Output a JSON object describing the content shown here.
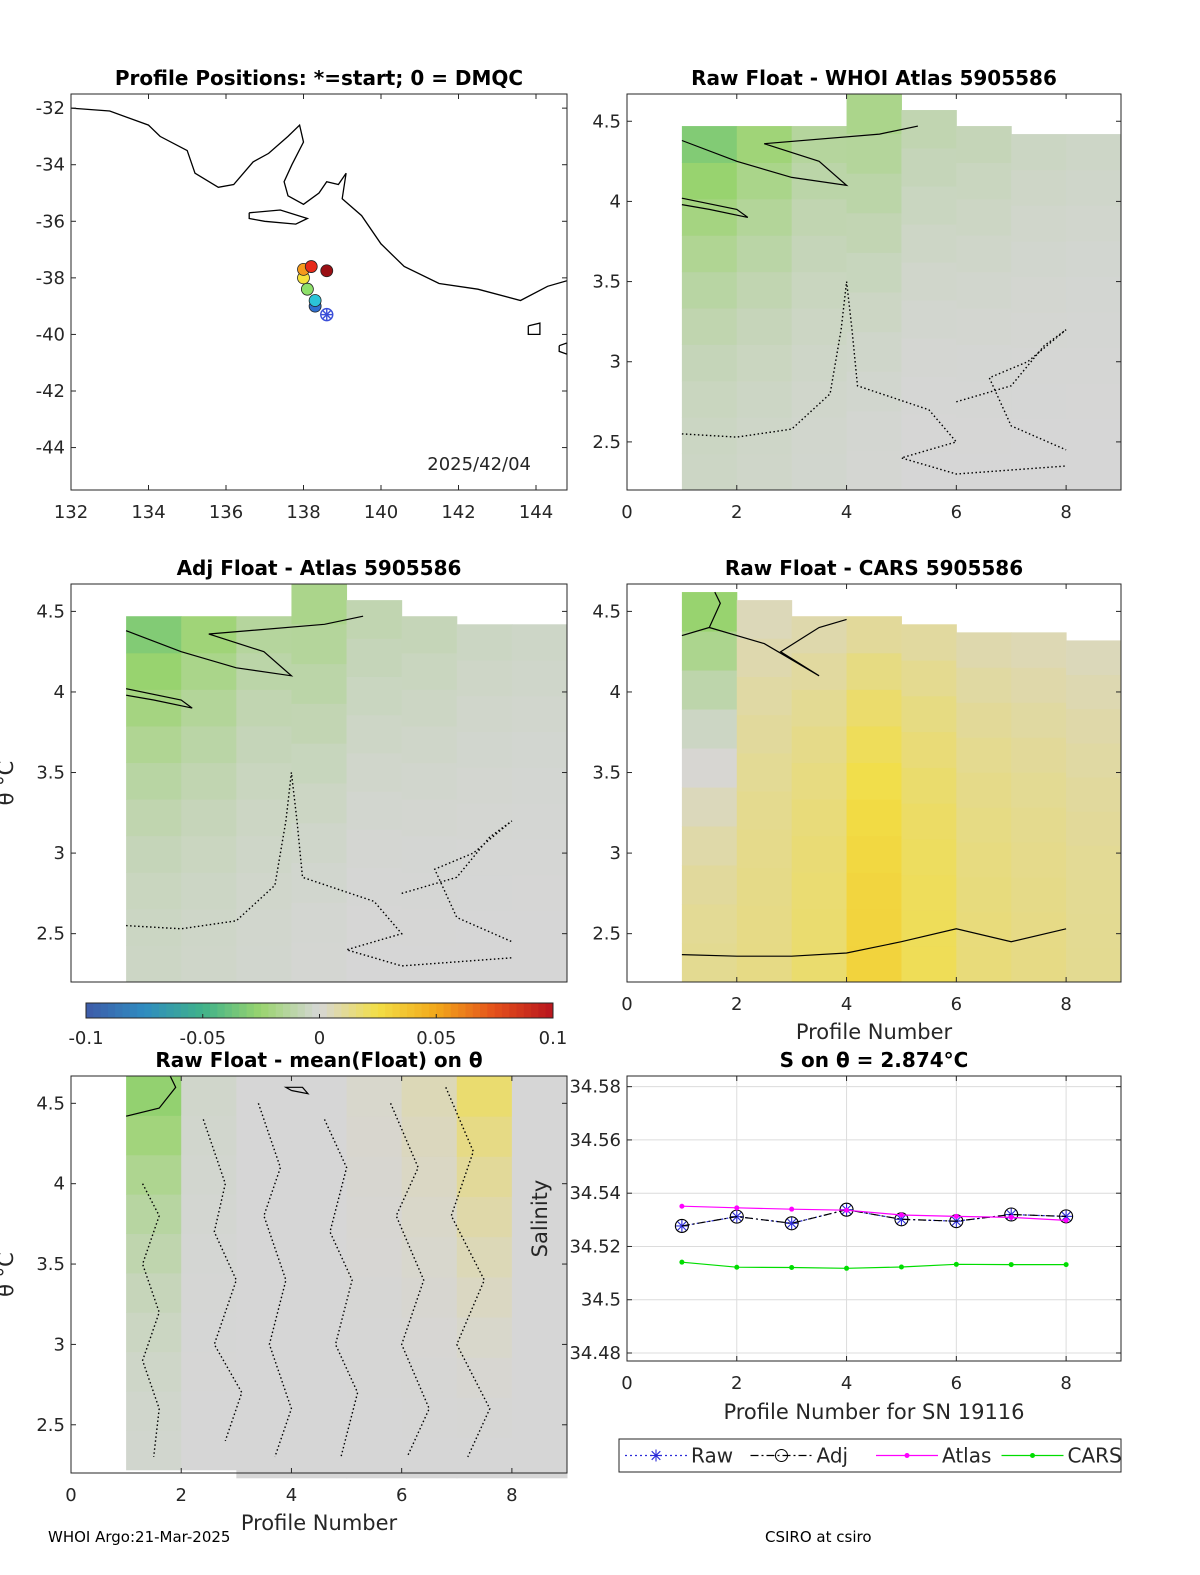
{
  "footer": {
    "left": "WHOI Argo:21-Mar-2025",
    "right": "CSIRO at csiro"
  },
  "colorbar": {
    "ticks": [
      -0.1,
      -0.05,
      0,
      0.05,
      0.1
    ],
    "tick_labels": [
      "-0.1",
      "-0.05",
      "0",
      "0.05",
      "0.1"
    ],
    "colormap": [
      "#3e5ba8",
      "#2f8cc0",
      "#3fb28a",
      "#9ad46e",
      "#d6d6d6",
      "#f2de46",
      "#f2a81a",
      "#e4501a",
      "#b8141e"
    ],
    "range": [
      -0.1,
      0.1
    ]
  },
  "chart_data": [
    {
      "type": "scatter",
      "id": "map",
      "title": "Profile Positions: *=start; 0 = DMQC",
      "annotation": "2025/42/04",
      "xlim": [
        132,
        144.8
      ],
      "ylim": [
        -45.5,
        -31.5
      ],
      "xticks": [
        132,
        134,
        136,
        138,
        140,
        142,
        144
      ],
      "yticks": [
        -32,
        -34,
        -36,
        -38,
        -40,
        -42,
        -44
      ],
      "start_marker": {
        "lon": 138.6,
        "lat": -39.3,
        "color": "#3b4fd8"
      },
      "points": [
        {
          "lon": 138.3,
          "lat": -39.0,
          "color": "#2f6fd0"
        },
        {
          "lon": 138.3,
          "lat": -38.8,
          "color": "#2cc4d8"
        },
        {
          "lon": 138.1,
          "lat": -38.4,
          "color": "#8ee06a"
        },
        {
          "lon": 138.0,
          "lat": -38.0,
          "color": "#f5e23c"
        },
        {
          "lon": 138.0,
          "lat": -37.7,
          "color": "#f59a1c"
        },
        {
          "lon": 138.2,
          "lat": -37.6,
          "color": "#e62a1a"
        },
        {
          "lon": 138.6,
          "lat": -37.75,
          "color": "#9a0f14"
        }
      ],
      "coastline": [
        [
          [
            132.0,
            -32.0
          ],
          [
            133.0,
            -32.1
          ],
          [
            134.0,
            -32.6
          ],
          [
            134.3,
            -33.0
          ],
          [
            135.0,
            -33.5
          ],
          [
            135.2,
            -34.3
          ],
          [
            135.8,
            -34.8
          ],
          [
            136.2,
            -34.7
          ],
          [
            136.7,
            -33.9
          ],
          [
            137.1,
            -33.6
          ],
          [
            137.6,
            -33.0
          ],
          [
            137.9,
            -32.6
          ],
          [
            138.0,
            -33.2
          ],
          [
            137.7,
            -34.0
          ],
          [
            137.5,
            -34.6
          ],
          [
            137.6,
            -35.1
          ],
          [
            138.0,
            -35.4
          ],
          [
            138.4,
            -35.0
          ],
          [
            138.6,
            -34.6
          ],
          [
            138.9,
            -34.7
          ],
          [
            139.1,
            -34.3
          ],
          [
            139.0,
            -35.2
          ],
          [
            139.5,
            -35.8
          ],
          [
            140.0,
            -36.8
          ],
          [
            140.6,
            -37.6
          ],
          [
            141.5,
            -38.2
          ],
          [
            142.5,
            -38.4
          ],
          [
            143.6,
            -38.8
          ],
          [
            144.3,
            -38.3
          ],
          [
            144.8,
            -38.1
          ]
        ],
        [
          [
            136.6,
            -35.7
          ],
          [
            137.4,
            -35.6
          ],
          [
            138.1,
            -35.9
          ],
          [
            137.8,
            -36.1
          ],
          [
            137.0,
            -36.0
          ],
          [
            136.6,
            -35.9
          ],
          [
            136.6,
            -35.7
          ]
        ],
        [
          [
            143.8,
            -39.7
          ],
          [
            144.1,
            -39.6
          ],
          [
            144.1,
            -40.0
          ],
          [
            143.8,
            -40.0
          ],
          [
            143.8,
            -39.7
          ]
        ],
        [
          [
            144.6,
            -40.4
          ],
          [
            144.8,
            -40.3
          ],
          [
            144.8,
            -40.7
          ],
          [
            144.6,
            -40.6
          ],
          [
            144.6,
            -40.4
          ]
        ]
      ]
    },
    {
      "type": "heatmap",
      "id": "raw-atlas",
      "title": "Raw Float - WHOI Atlas  5905586",
      "xlim": [
        0,
        9
      ],
      "ylim": [
        2.2,
        4.67
      ],
      "xticks": [
        0,
        2,
        4,
        6,
        8
      ],
      "yticks": [
        2.5,
        3,
        3.5,
        4,
        4.5
      ],
      "profiles": [
        1,
        2,
        3,
        4,
        5,
        6,
        7,
        8
      ],
      "top": [
        4.47,
        4.47,
        4.47,
        4.67,
        4.57,
        4.47,
        4.42,
        4.42
      ],
      "bottom": [
        2.2,
        2.2,
        2.2,
        2.2,
        2.2,
        2.2,
        2.2,
        2.2
      ],
      "shallow_value": [
        -0.035,
        -0.025,
        -0.015,
        -0.02,
        -0.01,
        -0.008,
        -0.005,
        -0.004
      ],
      "deep_value": [
        -0.004,
        -0.003,
        -0.002,
        -0.001,
        0,
        0,
        0,
        0
      ],
      "solid_contours": [
        [
          [
            1,
            4.38
          ],
          [
            2,
            4.25
          ],
          [
            3,
            4.15
          ],
          [
            4,
            4.1
          ],
          [
            3.5,
            4.25
          ],
          [
            2.5,
            4.36
          ],
          [
            4.6,
            4.42
          ],
          [
            5.3,
            4.47
          ]
        ],
        [
          [
            1,
            4.02
          ],
          [
            2,
            3.95
          ],
          [
            2.2,
            3.9
          ],
          [
            1.5,
            3.95
          ],
          [
            1,
            3.98
          ]
        ]
      ],
      "dotted_contours": [
        [
          [
            1,
            2.55
          ],
          [
            2,
            2.53
          ],
          [
            3,
            2.58
          ],
          [
            3.7,
            2.8
          ],
          [
            3.9,
            3.2
          ],
          [
            4.0,
            3.5
          ],
          [
            4.1,
            3.2
          ],
          [
            4.2,
            2.85
          ],
          [
            5.5,
            2.7
          ],
          [
            6,
            2.5
          ],
          [
            5.0,
            2.4
          ],
          [
            6.0,
            2.3
          ],
          [
            8,
            2.35
          ]
        ],
        [
          [
            6.0,
            2.75
          ],
          [
            7.0,
            2.85
          ],
          [
            7.6,
            3.1
          ],
          [
            8,
            3.2
          ],
          [
            7.3,
            3.0
          ],
          [
            6.6,
            2.9
          ],
          [
            7.0,
            2.6
          ],
          [
            8,
            2.45
          ]
        ]
      ]
    },
    {
      "type": "heatmap",
      "id": "adj-atlas",
      "title": "Adj Float - Atlas  5905586",
      "xlim": [
        0,
        9
      ],
      "ylim": [
        2.2,
        4.67
      ],
      "xticks": [],
      "yticks": [
        2.5,
        3,
        3.5,
        4,
        4.5
      ],
      "ylabel": "θ °C",
      "profiles": [
        1,
        2,
        3,
        4,
        5,
        6,
        7,
        8
      ],
      "top": [
        4.47,
        4.47,
        4.47,
        4.67,
        4.57,
        4.47,
        4.42,
        4.42
      ],
      "bottom": [
        2.2,
        2.2,
        2.2,
        2.2,
        2.2,
        2.2,
        2.2,
        2.2
      ],
      "shallow_value": [
        -0.035,
        -0.025,
        -0.015,
        -0.02,
        -0.01,
        -0.008,
        -0.005,
        -0.004
      ],
      "deep_value": [
        -0.004,
        -0.003,
        -0.002,
        -0.001,
        0,
        0,
        0,
        0
      ],
      "solid_contours": [
        [
          [
            1,
            4.38
          ],
          [
            2,
            4.25
          ],
          [
            3,
            4.15
          ],
          [
            4,
            4.1
          ],
          [
            3.5,
            4.25
          ],
          [
            2.5,
            4.36
          ],
          [
            4.6,
            4.42
          ],
          [
            5.3,
            4.47
          ]
        ],
        [
          [
            1,
            4.02
          ],
          [
            2,
            3.95
          ],
          [
            2.2,
            3.9
          ],
          [
            1.5,
            3.95
          ],
          [
            1,
            3.98
          ]
        ]
      ],
      "dotted_contours": [
        [
          [
            1,
            2.55
          ],
          [
            2,
            2.53
          ],
          [
            3,
            2.58
          ],
          [
            3.7,
            2.8
          ],
          [
            3.9,
            3.2
          ],
          [
            4.0,
            3.5
          ],
          [
            4.1,
            3.2
          ],
          [
            4.2,
            2.85
          ],
          [
            5.5,
            2.7
          ],
          [
            6,
            2.5
          ],
          [
            5.0,
            2.4
          ],
          [
            6.0,
            2.3
          ],
          [
            8,
            2.35
          ]
        ],
        [
          [
            6.0,
            2.75
          ],
          [
            7.0,
            2.85
          ],
          [
            7.6,
            3.1
          ],
          [
            8,
            3.2
          ],
          [
            7.3,
            3.0
          ],
          [
            6.6,
            2.9
          ],
          [
            7.0,
            2.6
          ],
          [
            8,
            2.45
          ]
        ]
      ]
    },
    {
      "type": "heatmap",
      "id": "raw-cars",
      "title": "Raw Float - CARS  5905586",
      "xlim": [
        0,
        9
      ],
      "ylim": [
        2.2,
        4.67
      ],
      "xticks": [
        0,
        2,
        4,
        6,
        8
      ],
      "yticks": [
        2.5,
        3,
        3.5,
        4,
        4.5
      ],
      "xlabel": "Profile Number",
      "profiles": [
        1,
        2,
        3,
        4,
        5,
        6,
        7,
        8
      ],
      "top": [
        4.62,
        4.57,
        4.47,
        4.47,
        4.42,
        4.37,
        4.37,
        4.32
      ],
      "bottom": [
        2.2,
        2.2,
        2.2,
        2.2,
        2.2,
        2.2,
        2.2,
        2.2
      ],
      "shallow_value": [
        -0.03,
        0.004,
        0.006,
        0.008,
        0.008,
        0.006,
        0.005,
        0.004
      ],
      "deep_value": [
        0.012,
        0.014,
        0.018,
        0.03,
        0.022,
        0.016,
        0.014,
        0.012
      ],
      "solid_contours": [
        [
          [
            1,
            4.35
          ],
          [
            1.5,
            4.4
          ],
          [
            1.7,
            4.55
          ],
          [
            1.6,
            4.62
          ]
        ],
        [
          [
            1.5,
            4.4
          ],
          [
            2.5,
            4.3
          ],
          [
            3.0,
            4.2
          ],
          [
            3.5,
            4.1
          ],
          [
            2.8,
            4.25
          ],
          [
            3.5,
            4.4
          ],
          [
            4,
            4.45
          ]
        ],
        [
          [
            1,
            2.37
          ],
          [
            2,
            2.36
          ],
          [
            3,
            2.36
          ],
          [
            4,
            2.38
          ],
          [
            5,
            2.45
          ],
          [
            6,
            2.53
          ],
          [
            7,
            2.45
          ],
          [
            8,
            2.53
          ]
        ]
      ],
      "dotted_contours": []
    },
    {
      "type": "heatmap",
      "id": "raw-mean",
      "title": "Raw Float - mean(Float) on θ",
      "xlim": [
        0,
        9
      ],
      "ylim": [
        2.2,
        4.67
      ],
      "xticks": [
        0,
        2,
        4,
        6,
        8
      ],
      "yticks": [
        2.5,
        3,
        3.5,
        4,
        4.5
      ],
      "ylabel": "θ °C",
      "xlabel": "Profile Number",
      "profiles": [
        1,
        2,
        3,
        4,
        5,
        6,
        7,
        8
      ],
      "top": [
        4.67,
        4.67,
        4.67,
        4.67,
        4.67,
        4.67,
        4.67,
        4.67
      ],
      "bottom": [
        2.22,
        2.22,
        2.17,
        2.17,
        2.17,
        2.17,
        2.17,
        2.17
      ],
      "shallow_value": [
        -0.03,
        -0.003,
        0,
        0,
        0.002,
        0.006,
        0.02,
        0
      ],
      "deep_value": [
        -0.002,
        0,
        0,
        0,
        0,
        0,
        0,
        0
      ],
      "solid_contours": [
        [
          [
            1,
            4.42
          ],
          [
            1.6,
            4.47
          ],
          [
            1.9,
            4.6
          ],
          [
            1.8,
            4.67
          ]
        ],
        [
          [
            4,
            4.58
          ],
          [
            4.3,
            4.56
          ],
          [
            4.2,
            4.6
          ],
          [
            3.9,
            4.6
          ],
          [
            4,
            4.58
          ]
        ]
      ],
      "dotted_contours": [
        [
          [
            1.3,
            4.0
          ],
          [
            1.6,
            3.8
          ],
          [
            1.3,
            3.5
          ],
          [
            1.6,
            3.2
          ],
          [
            1.3,
            2.9
          ],
          [
            1.6,
            2.6
          ],
          [
            1.5,
            2.3
          ]
        ],
        [
          [
            2.4,
            4.4
          ],
          [
            2.8,
            4.0
          ],
          [
            2.6,
            3.7
          ],
          [
            3.0,
            3.4
          ],
          [
            2.6,
            3.0
          ],
          [
            3.1,
            2.7
          ],
          [
            2.8,
            2.4
          ]
        ],
        [
          [
            3.4,
            4.5
          ],
          [
            3.8,
            4.1
          ],
          [
            3.5,
            3.8
          ],
          [
            3.9,
            3.4
          ],
          [
            3.6,
            3.0
          ],
          [
            4.0,
            2.6
          ],
          [
            3.7,
            2.3
          ]
        ],
        [
          [
            4.6,
            4.4
          ],
          [
            5.0,
            4.1
          ],
          [
            4.7,
            3.7
          ],
          [
            5.1,
            3.4
          ],
          [
            4.8,
            3.0
          ],
          [
            5.2,
            2.7
          ],
          [
            4.9,
            2.3
          ]
        ],
        [
          [
            5.8,
            4.5
          ],
          [
            6.3,
            4.1
          ],
          [
            5.9,
            3.8
          ],
          [
            6.4,
            3.4
          ],
          [
            6.0,
            3.0
          ],
          [
            6.5,
            2.6
          ],
          [
            6.1,
            2.3
          ]
        ],
        [
          [
            6.8,
            4.6
          ],
          [
            7.3,
            4.2
          ],
          [
            6.9,
            3.8
          ],
          [
            7.5,
            3.4
          ],
          [
            7.0,
            3.0
          ],
          [
            7.6,
            2.6
          ],
          [
            7.2,
            2.3
          ]
        ]
      ]
    },
    {
      "type": "line",
      "id": "salinity",
      "title": "S on θ = 2.874°C",
      "xlabel": "Profile Number for SN 19116",
      "ylabel": "Salinity",
      "xlim": [
        0,
        9
      ],
      "ylim": [
        34.477,
        34.584
      ],
      "xticks": [
        0,
        2,
        4,
        6,
        8
      ],
      "yticks": [
        34.48,
        34.5,
        34.52,
        34.54,
        34.56,
        34.58
      ],
      "ytick_labels": [
        "34.48",
        "34.5",
        "34.52",
        "34.54",
        "34.56",
        "34.58"
      ],
      "grid": true,
      "legend_position": "bottom",
      "x": [
        1,
        2,
        3,
        4,
        5,
        6,
        7,
        8
      ],
      "series": [
        {
          "name": "Raw",
          "color": "#2b2bd8",
          "style": "dotted",
          "marker": "star",
          "values": [
            34.5277,
            34.5312,
            34.5287,
            34.5338,
            34.5302,
            34.5295,
            34.532,
            34.5313
          ]
        },
        {
          "name": "Adj",
          "color": "#000000",
          "style": "dashdot",
          "marker": "circle",
          "values": [
            34.5277,
            34.5312,
            34.5287,
            34.5338,
            34.5302,
            34.5295,
            34.532,
            34.5313
          ]
        },
        {
          "name": "Atlas",
          "color": "#ff00ff",
          "style": "solid",
          "marker": "dot",
          "values": [
            34.5351,
            34.5345,
            34.534,
            34.5336,
            34.5318,
            34.5313,
            34.5309,
            34.5298
          ]
        },
        {
          "name": "CARS",
          "color": "#00dd00",
          "style": "solid",
          "marker": "dot",
          "values": [
            34.5141,
            34.5122,
            34.5121,
            34.5118,
            34.5123,
            34.5133,
            34.5132,
            34.5132
          ]
        }
      ]
    }
  ]
}
